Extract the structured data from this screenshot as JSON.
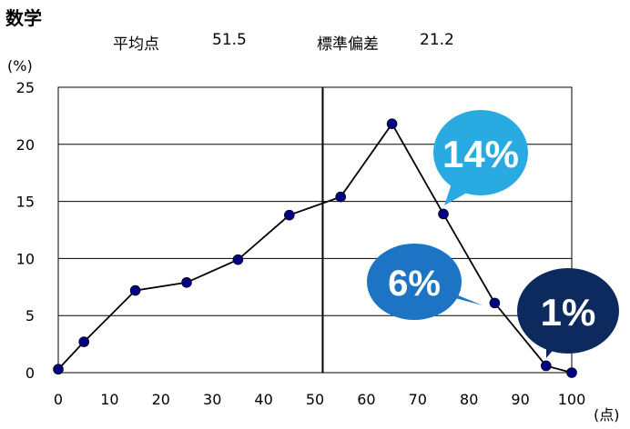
{
  "subject_title": "数学",
  "stats": {
    "mean_label": "平均点",
    "mean_value": "51.5",
    "sd_label": "標準偏差",
    "sd_value": "21.2"
  },
  "chart_data": {
    "type": "line",
    "title": "",
    "ylabel": "(%)",
    "xlabel": "(点)",
    "xlim": [
      0,
      100
    ],
    "ylim": [
      0,
      25
    ],
    "x_ticks": [
      "0",
      "10",
      "20",
      "30",
      "40",
      "50",
      "60",
      "70",
      "80",
      "90",
      "100"
    ],
    "y_ticks": [
      "0",
      "5",
      "10",
      "15",
      "20",
      "25"
    ],
    "grid": "horizontal",
    "vline_x": 51.5,
    "series": [
      {
        "color": "#000080",
        "points": [
          {
            "x": 0,
            "y": 0.3
          },
          {
            "x": 5,
            "y": 2.7
          },
          {
            "x": 15,
            "y": 7.2
          },
          {
            "x": 25,
            "y": 7.9
          },
          {
            "x": 35,
            "y": 9.9
          },
          {
            "x": 45,
            "y": 13.8
          },
          {
            "x": 55,
            "y": 15.4
          },
          {
            "x": 65,
            "y": 21.8
          },
          {
            "x": 75,
            "y": 13.9
          },
          {
            "x": 85,
            "y": 6.1
          },
          {
            "x": 95,
            "y": 0.6
          },
          {
            "x": 100,
            "y": 0.0
          }
        ]
      }
    ],
    "callouts": [
      {
        "label": "14%",
        "color": "#29abe2"
      },
      {
        "label": "6%",
        "color": "#1d74c4"
      },
      {
        "label": "1%",
        "color": "#0d2a5e"
      }
    ]
  }
}
